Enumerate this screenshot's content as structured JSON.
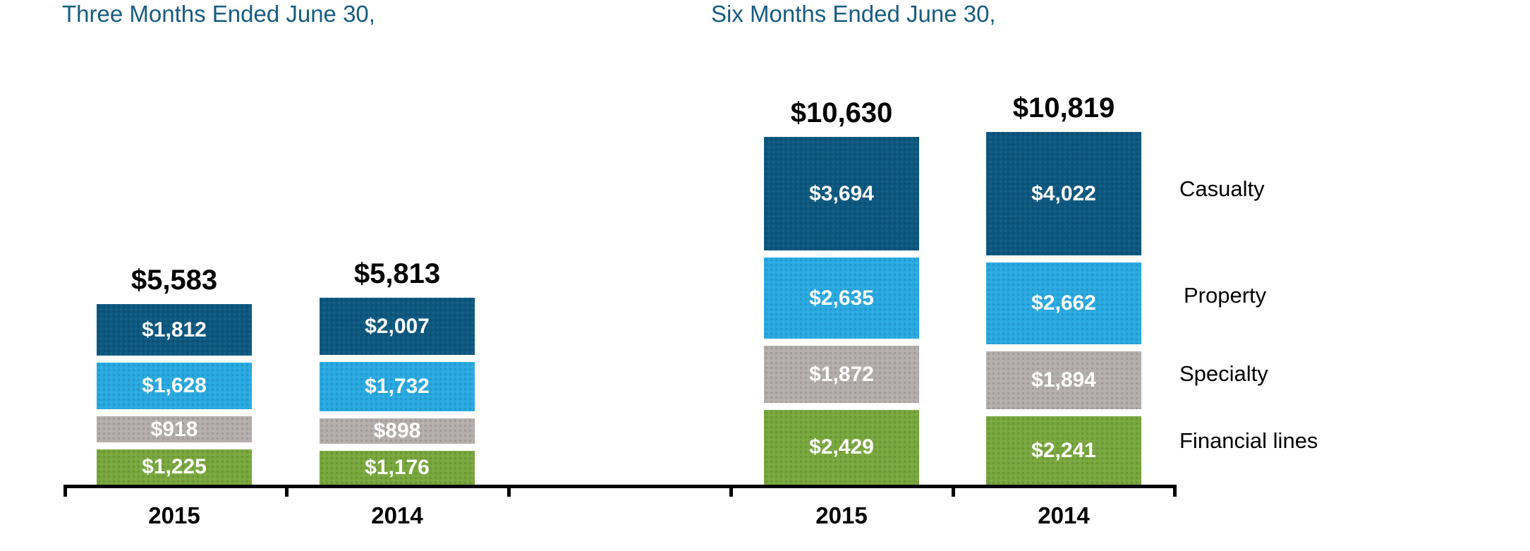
{
  "titles": {
    "left": "Three Months Ended June 30,",
    "right": "Six Months Ended June 30,"
  },
  "legend": {
    "items": [
      {
        "label": "Casualty"
      },
      {
        "label": "Property"
      },
      {
        "label": "Specialty"
      },
      {
        "label": "Financial lines"
      }
    ]
  },
  "colors": {
    "title_text": "#175C80",
    "casualty": "#0D5880",
    "property": "#29A9E1",
    "specialty": "#B3AEAB",
    "financial_lines": "#78A73D",
    "axis": "#000000",
    "totals_text": "#000000",
    "segment_text": "#FFFFFF"
  },
  "chart_data": [
    {
      "type": "bar",
      "stacked": true,
      "title": "Three Months Ended June 30,",
      "categories": [
        "2015",
        "2014"
      ],
      "totals": [
        5583,
        5813
      ],
      "total_labels": [
        "$5,583",
        "$5,813"
      ],
      "series": [
        {
          "name": "Casualty",
          "color": "#0D5880",
          "values": [
            1812,
            2007
          ],
          "labels": [
            "$1,812",
            "$2,007"
          ]
        },
        {
          "name": "Property",
          "color": "#29A9E1",
          "values": [
            1628,
            1732
          ],
          "labels": [
            "$1,628",
            "$1,732"
          ]
        },
        {
          "name": "Specialty",
          "color": "#B3AEAB",
          "values": [
            918,
            898
          ],
          "labels": [
            "$918",
            "$898"
          ]
        },
        {
          "name": "Financial lines",
          "color": "#78A73D",
          "values": [
            1225,
            1176
          ],
          "labels": [
            "$1,225",
            "$1,176"
          ]
        }
      ],
      "legend_position": "right",
      "grid": false
    },
    {
      "type": "bar",
      "stacked": true,
      "title": "Six Months Ended June 30,",
      "categories": [
        "2015",
        "2014"
      ],
      "totals": [
        10630,
        10819
      ],
      "total_labels": [
        "$10,630",
        "$10,819"
      ],
      "series": [
        {
          "name": "Casualty",
          "color": "#0D5880",
          "values": [
            3694,
            4022
          ],
          "labels": [
            "$3,694",
            "$4,022"
          ]
        },
        {
          "name": "Property",
          "color": "#29A9E1",
          "values": [
            2635,
            2662
          ],
          "labels": [
            "$2,635",
            "$2,662"
          ]
        },
        {
          "name": "Specialty",
          "color": "#B3AEAB",
          "values": [
            1872,
            1894
          ],
          "labels": [
            "$1,872",
            "$1,894"
          ]
        },
        {
          "name": "Financial lines",
          "color": "#78A73D",
          "values": [
            2429,
            2241
          ],
          "labels": [
            "$2,429",
            "$2,241"
          ]
        }
      ],
      "legend_position": "right",
      "grid": false
    }
  ]
}
